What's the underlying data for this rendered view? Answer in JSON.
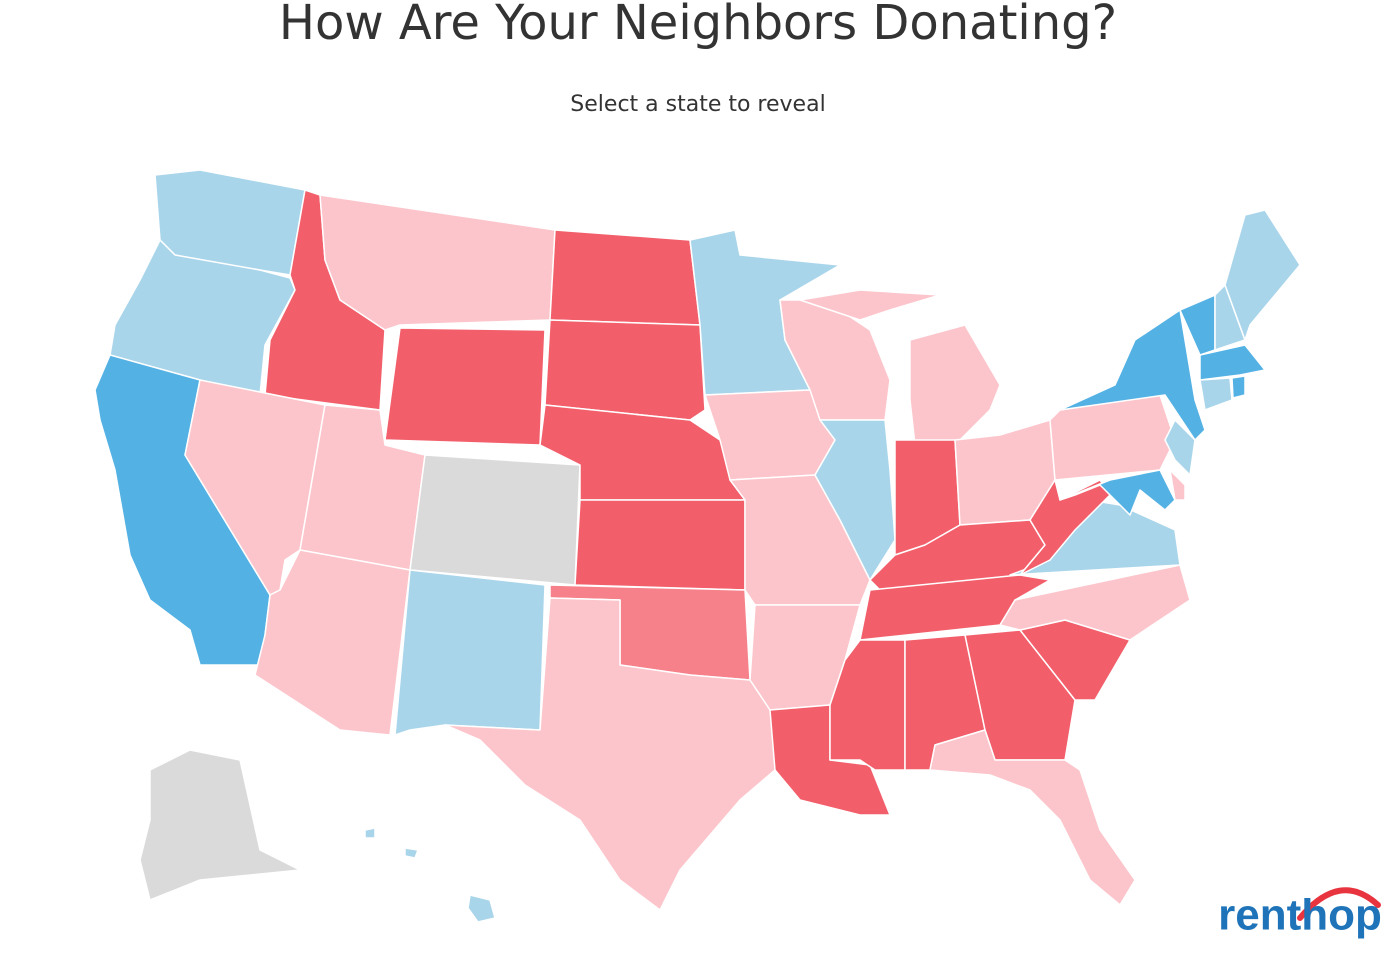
{
  "header": {
    "title": "How Are Your Neighbors Donating?",
    "subtitle": "Select a state to reveal"
  },
  "map": {
    "states": [
      {
        "color": "#a9d5eb"
      },
      {
        "color": "#a9d5eb"
      },
      {
        "color": "#53b1e4"
      },
      {
        "color": "#f25f6b"
      },
      {
        "color": "#fcc5cb"
      },
      {
        "color": "#fcc5cb"
      },
      {
        "color": "#f25f6b"
      },
      {
        "color": "#fcc5cb"
      },
      {
        "color": "#fcc5cb"
      },
      {
        "color": "#dadada"
      },
      {
        "color": "#a9d5eb"
      },
      {
        "color": "#f25f6b"
      },
      {
        "color": "#f25f6b"
      },
      {
        "color": "#f25f6b"
      },
      {
        "color": "#f25f6b"
      },
      {
        "color": "#f6818a"
      },
      {
        "color": "#fcc5cb"
      },
      {
        "color": "#a9d5eb"
      },
      {
        "color": "#fcc5cb"
      },
      {
        "color": "#fcc5cb"
      },
      {
        "color": "#fcc5cb"
      },
      {
        "color": "#f25f6b"
      },
      {
        "color": "#fcc5cb"
      },
      {
        "color": "#a9d5eb"
      },
      {
        "color": "#fcc5cb"
      },
      {
        "color": "#fcc5cb"
      },
      {
        "color": "#f25f6b"
      },
      {
        "color": "#fcc5cb"
      },
      {
        "color": "#f25f6b"
      },
      {
        "color": "#f25f6b"
      },
      {
        "color": "#f25f6b"
      },
      {
        "color": "#f25f6b"
      },
      {
        "color": "#f25f6b"
      },
      {
        "color": "#fcc5cb"
      },
      {
        "color": "#f25f6b"
      },
      {
        "color": "#fcc5cb"
      },
      {
        "color": "#a9d5eb"
      },
      {
        "color": "#f25f6b"
      },
      {
        "color": "#fcc5cb"
      },
      {
        "color": "#53b1e4"
      },
      {
        "color": "#a9d5eb"
      },
      {
        "color": "#53b1e4"
      },
      {
        "color": "#fcc5cb"
      },
      {
        "color": "#53b1e4"
      },
      {
        "color": "#a9d5eb"
      },
      {
        "color": "#a9d5eb"
      },
      {
        "color": "#53b1e4"
      },
      {
        "color": "#a9d5eb"
      },
      {
        "color": "#53b1e4"
      },
      {
        "color": "#dadada"
      },
      {
        "color": "#a9d5eb"
      }
    ]
  },
  "logo": {
    "text": "renthop"
  }
}
